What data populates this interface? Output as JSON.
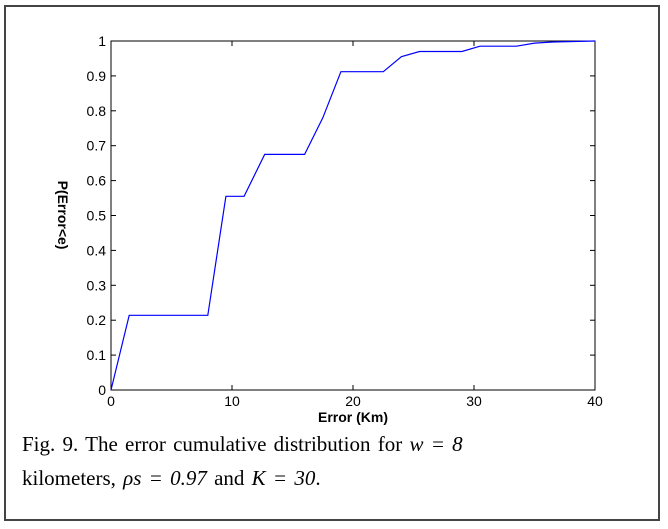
{
  "chart_data": {
    "type": "line",
    "xlabel": "Error (Km)",
    "ylabel": "P(Error<e)",
    "xlim": [
      0,
      40
    ],
    "ylim": [
      0,
      1
    ],
    "xticks": [
      "0",
      "10",
      "20",
      "30",
      "40"
    ],
    "yticks": [
      "0",
      "0.1",
      "0.2",
      "0.3",
      "0.4",
      "0.5",
      "0.6",
      "0.7",
      "0.8",
      "0.9",
      "1"
    ],
    "series": [
      {
        "color": "#0000ff",
        "x": [
          0,
          1.5,
          8,
          9.5,
          11,
          12.7,
          16,
          17.5,
          19,
          22.5,
          24,
          25.5,
          29,
          30.5,
          33.5,
          35,
          36.5,
          40
        ],
        "y": [
          0,
          0.214,
          0.214,
          0.555,
          0.555,
          0.675,
          0.675,
          0.78,
          0.912,
          0.912,
          0.955,
          0.97,
          0.97,
          0.985,
          0.985,
          0.994,
          0.997,
          1.0
        ]
      }
    ]
  },
  "caption": {
    "line1_text": "Fig. 9. The error cumulative distribution for",
    "w_expr": "w = 8",
    "line2_prefix": "kilometers,",
    "rho_expr": "ρs = 0.97",
    "and_word": "and",
    "k_expr": "K = 30",
    "end": "."
  }
}
